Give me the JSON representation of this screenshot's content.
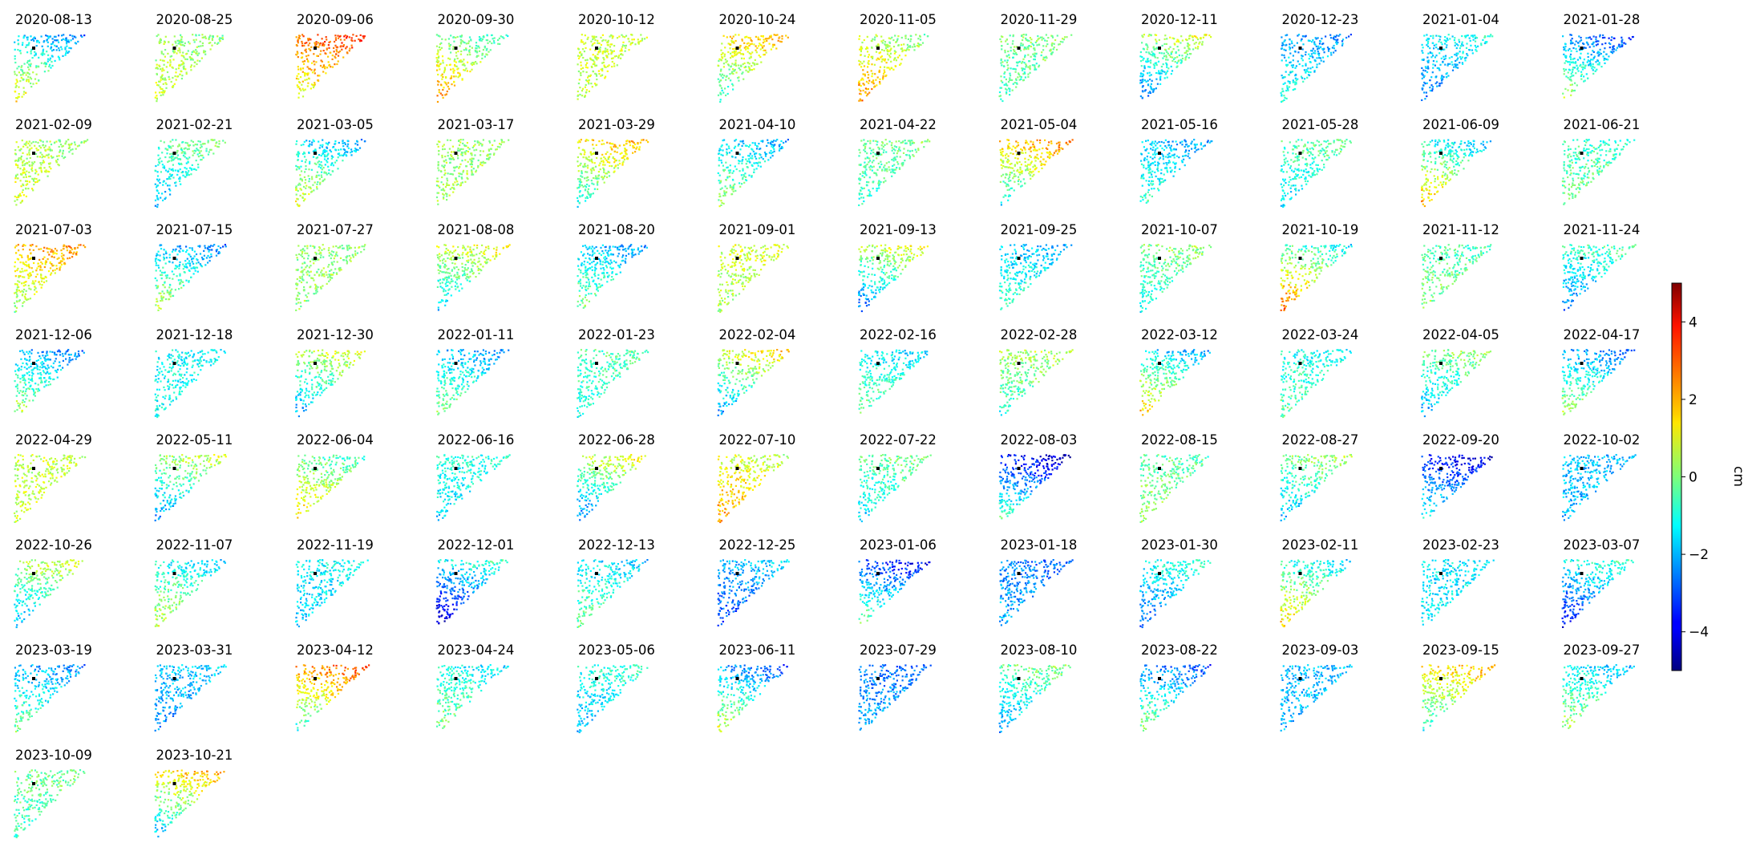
{
  "chart_data": {
    "type": "scatter",
    "title": "",
    "subplot_titles": [
      "2020-08-13",
      "2020-08-25",
      "2020-09-06",
      "2020-09-30",
      "2020-10-12",
      "2020-10-24",
      "2020-11-05",
      "2020-11-29",
      "2020-12-11",
      "2020-12-23",
      "2021-01-04",
      "2021-01-28",
      "2021-02-09",
      "2021-02-21",
      "2021-03-05",
      "2021-03-17",
      "2021-03-29",
      "2021-04-10",
      "2021-04-22",
      "2021-05-04",
      "2021-05-16",
      "2021-05-28",
      "2021-06-09",
      "2021-06-21",
      "2021-07-03",
      "2021-07-15",
      "2021-07-27",
      "2021-08-08",
      "2021-08-20",
      "2021-09-01",
      "2021-09-13",
      "2021-09-25",
      "2021-10-07",
      "2021-10-19",
      "2021-11-12",
      "2021-11-24",
      "2021-12-06",
      "2021-12-18",
      "2021-12-30",
      "2022-01-11",
      "2022-01-23",
      "2022-02-04",
      "2022-02-16",
      "2022-02-28",
      "2022-03-12",
      "2022-03-24",
      "2022-04-05",
      "2022-04-17",
      "2022-04-29",
      "2022-05-11",
      "2022-06-04",
      "2022-06-16",
      "2022-06-28",
      "2022-07-10",
      "2022-07-22",
      "2022-08-03",
      "2022-08-15",
      "2022-08-27",
      "2022-09-20",
      "2022-10-02",
      "2022-10-26",
      "2022-11-07",
      "2022-11-19",
      "2022-12-01",
      "2022-12-13",
      "2022-12-25",
      "2023-01-06",
      "2023-01-18",
      "2023-01-30",
      "2023-02-11",
      "2023-02-23",
      "2023-03-07",
      "2023-03-19",
      "2023-03-31",
      "2023-04-12",
      "2023-04-24",
      "2023-05-06",
      "2023-06-11",
      "2023-07-29",
      "2023-08-10",
      "2023-08-22",
      "2023-09-03",
      "2023-09-15",
      "2023-09-27",
      "2023-10-09",
      "2023-10-21"
    ],
    "panel_mean_cm": [
      -0.5,
      0.4,
      2.0,
      0.8,
      0.7,
      0.5,
      1.2,
      -0.3,
      -0.9,
      -1.6,
      -1.8,
      -1.2,
      0.6,
      -1.0,
      -0.5,
      0.3,
      0.4,
      -0.8,
      -0.4,
      0.5,
      -1.3,
      -0.9,
      0.1,
      -0.4,
      1.2,
      -0.8,
      0.2,
      -0.3,
      -1.0,
      0.6,
      -0.8,
      -1.2,
      -0.5,
      0.8,
      -0.2,
      -1.5,
      -0.9,
      -1.2,
      -0.6,
      -1.0,
      -0.7,
      -0.4,
      -0.8,
      -0.2,
      -0.1,
      -0.8,
      -0.9,
      -1.0,
      0.7,
      -0.8,
      0.5,
      -1.2,
      -0.7,
      1.4,
      -0.8,
      -2.3,
      -0.1,
      -0.8,
      -2.5,
      -1.9,
      -0.6,
      -0.4,
      -1.5,
      -2.6,
      -0.9,
      -2.4,
      -1.8,
      -2.3,
      -1.8,
      0.1,
      -1.4,
      -2.2,
      -1.2,
      -2.0,
      1.0,
      -0.6,
      -1.4,
      -1.0,
      -2.3,
      -1.1,
      -1.3,
      -1.9,
      0.4,
      -0.6,
      -0.4,
      0.1
    ],
    "colorbar": {
      "colormap": "jet",
      "label": "cm",
      "range": [
        -5,
        5
      ],
      "ticks": [
        4,
        2,
        0,
        -2,
        -4
      ],
      "tick_labels": [
        "4",
        "2",
        "0",
        "−2",
        "−4"
      ]
    },
    "reference_point": {
      "marker": "black square"
    },
    "grid": false,
    "axes_visible": false
  }
}
